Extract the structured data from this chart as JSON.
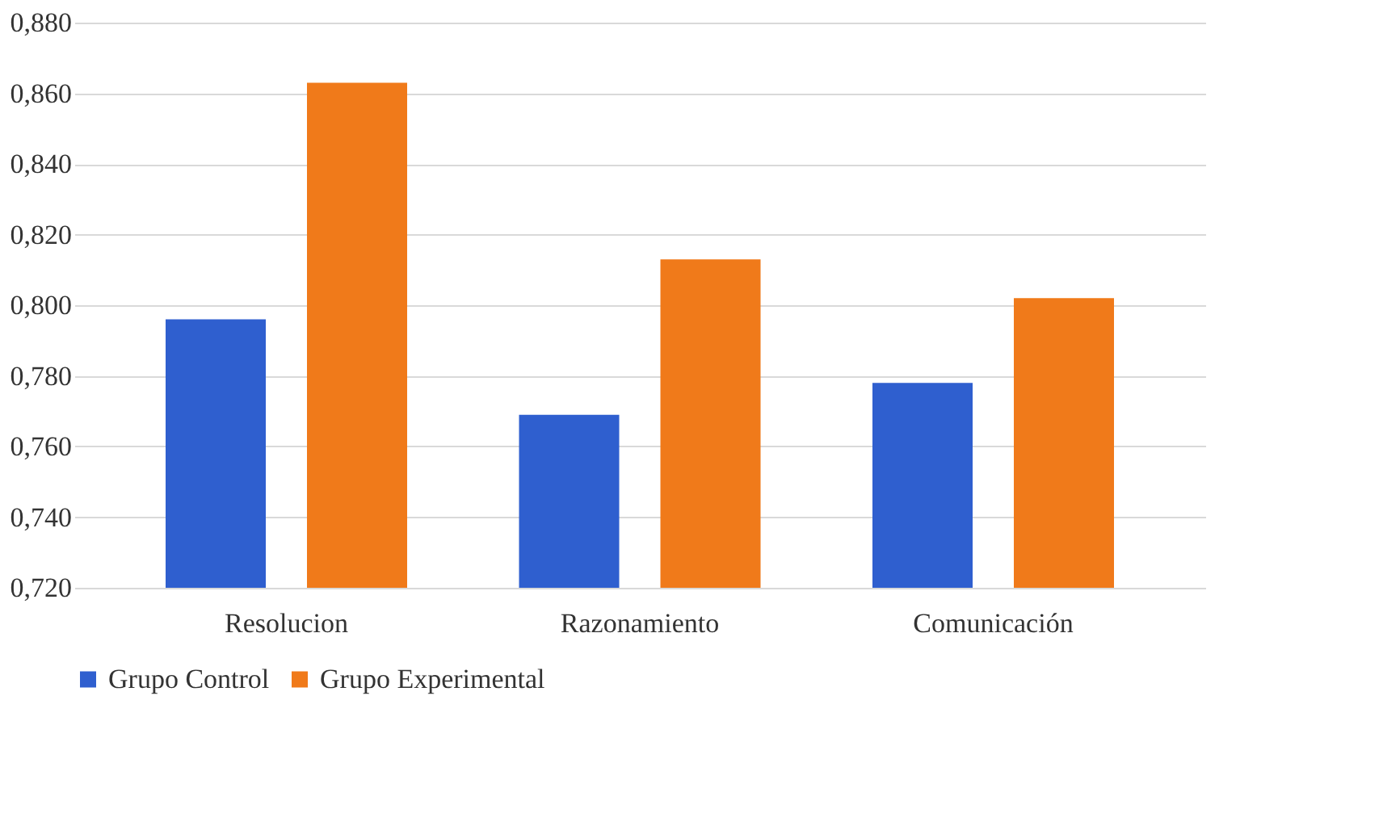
{
  "chart_data": {
    "type": "bar",
    "categories": [
      "Resolucion",
      "Razonamiento",
      "Comunicación"
    ],
    "series": [
      {
        "name": "Grupo Control",
        "color": "#2f5fcf",
        "values": [
          0.796,
          0.769,
          0.778
        ]
      },
      {
        "name": "Grupo Experimental",
        "color": "#f07a1a",
        "values": [
          0.863,
          0.813,
          0.802
        ]
      }
    ],
    "ylim": [
      0.72,
      0.88
    ],
    "yticks": [
      {
        "value": 0.72,
        "label": "0,720"
      },
      {
        "value": 0.74,
        "label": "0,740"
      },
      {
        "value": 0.76,
        "label": "0,760"
      },
      {
        "value": 0.78,
        "label": "0,780"
      },
      {
        "value": 0.8,
        "label": "0,800"
      },
      {
        "value": 0.82,
        "label": "0,820"
      },
      {
        "value": 0.84,
        "label": "0,840"
      },
      {
        "value": 0.86,
        "label": "0,860"
      },
      {
        "value": 0.88,
        "label": "0,880"
      }
    ],
    "grid": "y",
    "legend": "bottom"
  }
}
